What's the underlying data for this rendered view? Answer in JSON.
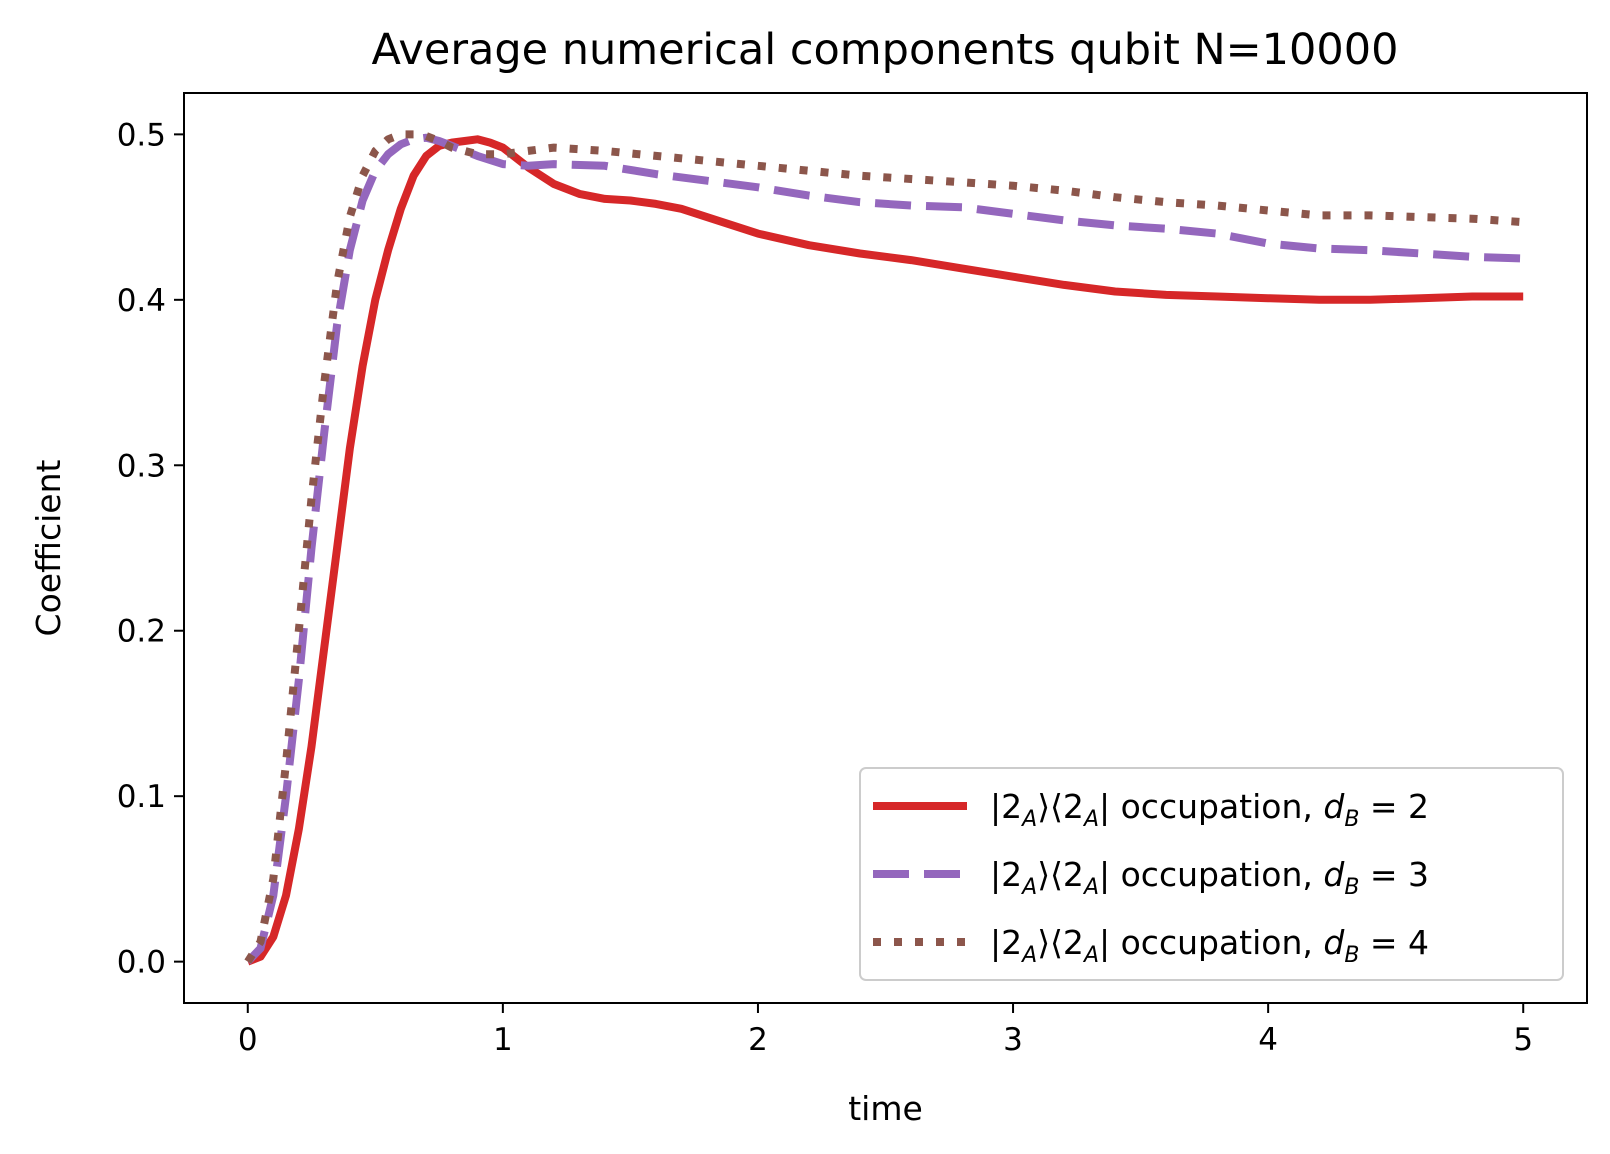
{
  "chart_data": {
    "type": "line",
    "title": "Average numerical components qubit N=10000",
    "xlabel": "time",
    "ylabel": "Coefficient",
    "xlim": [
      -0.25,
      5.25
    ],
    "ylim": [
      -0.025,
      0.525
    ],
    "xticks": [
      0,
      1,
      2,
      3,
      4,
      5
    ],
    "xtick_labels": [
      "0",
      "1",
      "2",
      "3",
      "4",
      "5"
    ],
    "yticks": [
      0.0,
      0.1,
      0.2,
      0.3,
      0.4,
      0.5
    ],
    "ytick_labels": [
      "0.0",
      "0.1",
      "0.2",
      "0.3",
      "0.4",
      "0.5"
    ],
    "grid": false,
    "legend_position": "lower-right",
    "series": [
      {
        "name": "|2_A⟩⟨2_A| occupation, d_B = 2",
        "legend_parts": {
          "state": "2",
          "sub": "A",
          "mid": " occupation, ",
          "d": "d",
          "dsub": "B",
          "eq": " = 2"
        },
        "color": "#d62728",
        "style": "solid",
        "x": [
          0,
          0.05,
          0.1,
          0.15,
          0.2,
          0.25,
          0.3,
          0.35,
          0.4,
          0.45,
          0.5,
          0.55,
          0.6,
          0.65,
          0.7,
          0.75,
          0.8,
          0.85,
          0.9,
          0.95,
          1.0,
          1.05,
          1.1,
          1.2,
          1.3,
          1.4,
          1.5,
          1.6,
          1.7,
          1.8,
          2.0,
          2.2,
          2.4,
          2.6,
          2.8,
          3.0,
          3.2,
          3.4,
          3.6,
          3.8,
          4.0,
          4.2,
          4.4,
          4.6,
          4.8,
          5.0
        ],
        "y": [
          0.0,
          0.003,
          0.015,
          0.04,
          0.08,
          0.13,
          0.19,
          0.25,
          0.31,
          0.36,
          0.4,
          0.43,
          0.455,
          0.475,
          0.487,
          0.493,
          0.495,
          0.496,
          0.497,
          0.495,
          0.492,
          0.486,
          0.48,
          0.47,
          0.464,
          0.461,
          0.46,
          0.458,
          0.455,
          0.45,
          0.44,
          0.433,
          0.428,
          0.424,
          0.419,
          0.414,
          0.409,
          0.405,
          0.403,
          0.402,
          0.401,
          0.4,
          0.4,
          0.401,
          0.402,
          0.402
        ]
      },
      {
        "name": "|2_A⟩⟨2_A| occupation, d_B = 3",
        "legend_parts": {
          "state": "2",
          "sub": "A",
          "mid": " occupation, ",
          "d": "d",
          "dsub": "B",
          "eq": " = 3"
        },
        "color": "#9467bd",
        "style": "dashed",
        "x": [
          0,
          0.05,
          0.1,
          0.15,
          0.2,
          0.25,
          0.3,
          0.35,
          0.4,
          0.45,
          0.5,
          0.55,
          0.6,
          0.65,
          0.7,
          0.75,
          0.8,
          0.9,
          1.0,
          1.1,
          1.2,
          1.4,
          1.6,
          1.8,
          2.0,
          2.2,
          2.4,
          2.6,
          2.8,
          3.0,
          3.2,
          3.4,
          3.6,
          3.8,
          4.0,
          4.2,
          4.4,
          4.6,
          4.8,
          5.0
        ],
        "y": [
          0.0,
          0.008,
          0.04,
          0.1,
          0.17,
          0.25,
          0.32,
          0.385,
          0.43,
          0.46,
          0.478,
          0.488,
          0.494,
          0.497,
          0.498,
          0.496,
          0.493,
          0.487,
          0.482,
          0.481,
          0.482,
          0.481,
          0.476,
          0.472,
          0.468,
          0.463,
          0.459,
          0.457,
          0.456,
          0.452,
          0.448,
          0.445,
          0.443,
          0.44,
          0.434,
          0.431,
          0.43,
          0.428,
          0.426,
          0.425
        ]
      },
      {
        "name": "|2_A⟩⟨2_A| occupation, d_B = 4",
        "legend_parts": {
          "state": "2",
          "sub": "A",
          "mid": " occupation, ",
          "d": "d",
          "dsub": "B",
          "eq": " = 4"
        },
        "color": "#8c564b",
        "style": "dotted",
        "x": [
          0,
          0.05,
          0.1,
          0.15,
          0.2,
          0.25,
          0.3,
          0.35,
          0.4,
          0.45,
          0.5,
          0.55,
          0.6,
          0.65,
          0.7,
          0.75,
          0.8,
          0.9,
          1.0,
          1.1,
          1.2,
          1.4,
          1.6,
          1.8,
          2.0,
          2.2,
          2.4,
          2.6,
          2.8,
          3.0,
          3.2,
          3.4,
          3.6,
          3.8,
          4.0,
          4.2,
          4.4,
          4.6,
          4.8,
          5.0
        ],
        "y": [
          0.0,
          0.012,
          0.05,
          0.12,
          0.2,
          0.28,
          0.35,
          0.41,
          0.45,
          0.475,
          0.49,
          0.497,
          0.5,
          0.5,
          0.499,
          0.496,
          0.492,
          0.488,
          0.488,
          0.49,
          0.492,
          0.49,
          0.487,
          0.484,
          0.481,
          0.478,
          0.475,
          0.473,
          0.471,
          0.469,
          0.466,
          0.462,
          0.459,
          0.457,
          0.454,
          0.451,
          0.451,
          0.45,
          0.449,
          0.447
        ]
      }
    ]
  }
}
